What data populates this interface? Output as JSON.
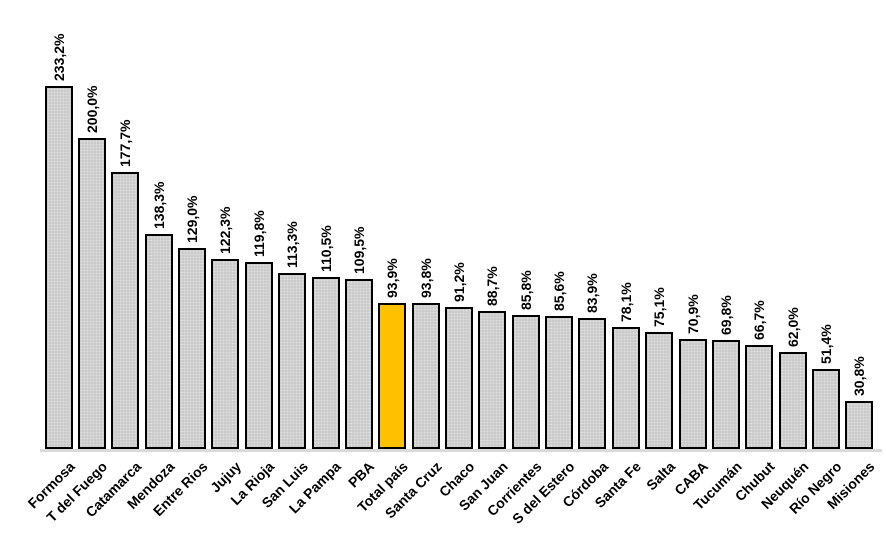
{
  "chart_data": {
    "type": "bar",
    "title": "",
    "xlabel": "",
    "ylabel": "",
    "categories": [
      "Formosa",
      "T del Fuego",
      "Catamarca",
      "Mendoza",
      "Entre Rios",
      "Jujuy",
      "La Rioja",
      "San Luis",
      "La Pampa",
      "PBA",
      "Total país",
      "Santa Cruz",
      "Chaco",
      "San Juan",
      "Corrientes",
      "S del Estero",
      "Córdoba",
      "Santa Fe",
      "Salta",
      "CABA",
      "Tucumán",
      "Chubut",
      "Neuquén",
      "Río Negro",
      "Misiones"
    ],
    "values": [
      233.2,
      200.0,
      177.7,
      138.3,
      129.0,
      122.3,
      119.8,
      113.3,
      110.5,
      109.5,
      93.9,
      93.8,
      91.2,
      88.7,
      85.8,
      85.6,
      83.9,
      78.1,
      75.1,
      70.9,
      69.8,
      66.7,
      62.0,
      51.4,
      30.8
    ],
    "labels": [
      "233,2%",
      "200,0%",
      "177,7%",
      "138,3%",
      "129,0%",
      "122,3%",
      "119,8%",
      "113,3%",
      "110,5%",
      "109,5%",
      "93,9%",
      "93,8%",
      "91,2%",
      "88,7%",
      "85,8%",
      "85,6%",
      "83,9%",
      "78,1%",
      "75,1%",
      "70,9%",
      "69,8%",
      "66,7%",
      "62,0%",
      "51,4%",
      "30,8%"
    ],
    "highlight_index": 10,
    "highlight_category": "Total país",
    "colors": {
      "bar_fill": "#C9C9C9",
      "bar_border": "#000000",
      "highlight_fill": "#FFC000",
      "baseline": "#D9D9D9",
      "label_text": "#000000"
    },
    "value_label_rotation_deg": -90,
    "category_label_rotation_deg": -45,
    "decimal_separator": ",",
    "ylim": [
      0,
      250
    ],
    "grid": false,
    "legend": false
  }
}
